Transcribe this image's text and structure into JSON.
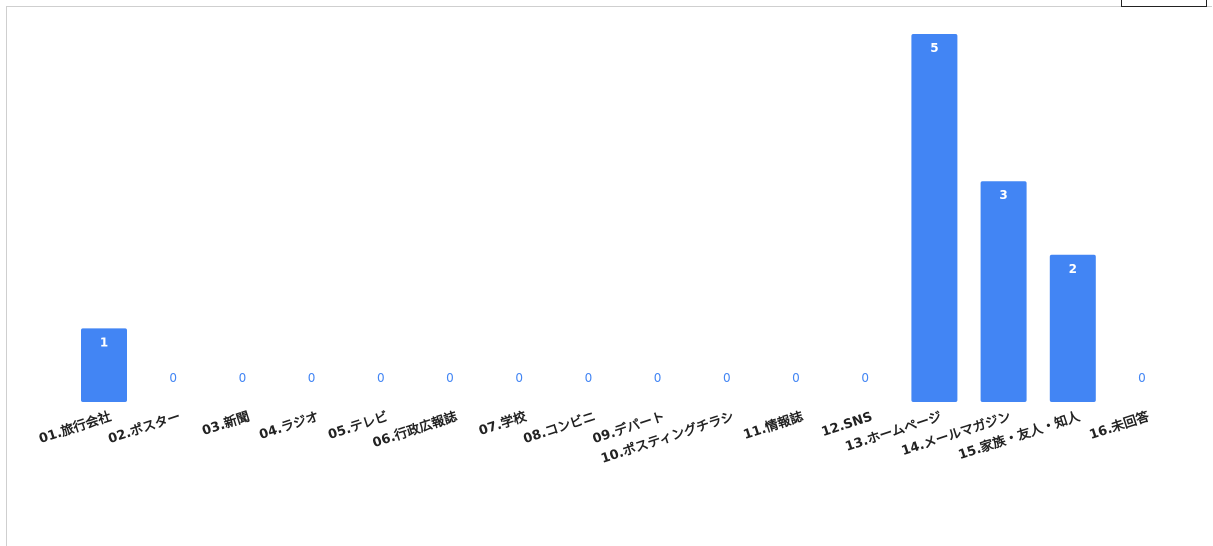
{
  "chart_data": {
    "type": "bar",
    "categories": [
      "01.旅行会社",
      "02.ポスター",
      "03.新聞",
      "04.ラジオ",
      "05.テレビ",
      "06.行政広報誌",
      "07.学校",
      "08.コンビニ",
      "09.デパート",
      "10.ポスティングチラシ",
      "11.情報誌",
      "12.SNS",
      "13.ホームページ",
      "14.メールマガジン",
      "15.家族・友人・知人",
      "16.未回答"
    ],
    "values": [
      1,
      0,
      0,
      0,
      0,
      0,
      0,
      0,
      0,
      0,
      0,
      0,
      5,
      3,
      2,
      0
    ],
    "title": "",
    "xlabel": "",
    "ylabel": "",
    "ylim": [
      0,
      5
    ],
    "grid": false,
    "legend": "none",
    "bar_color": "#4285f4",
    "label_color_inside": "#ffffff",
    "label_color_zero": "#4285f4"
  }
}
